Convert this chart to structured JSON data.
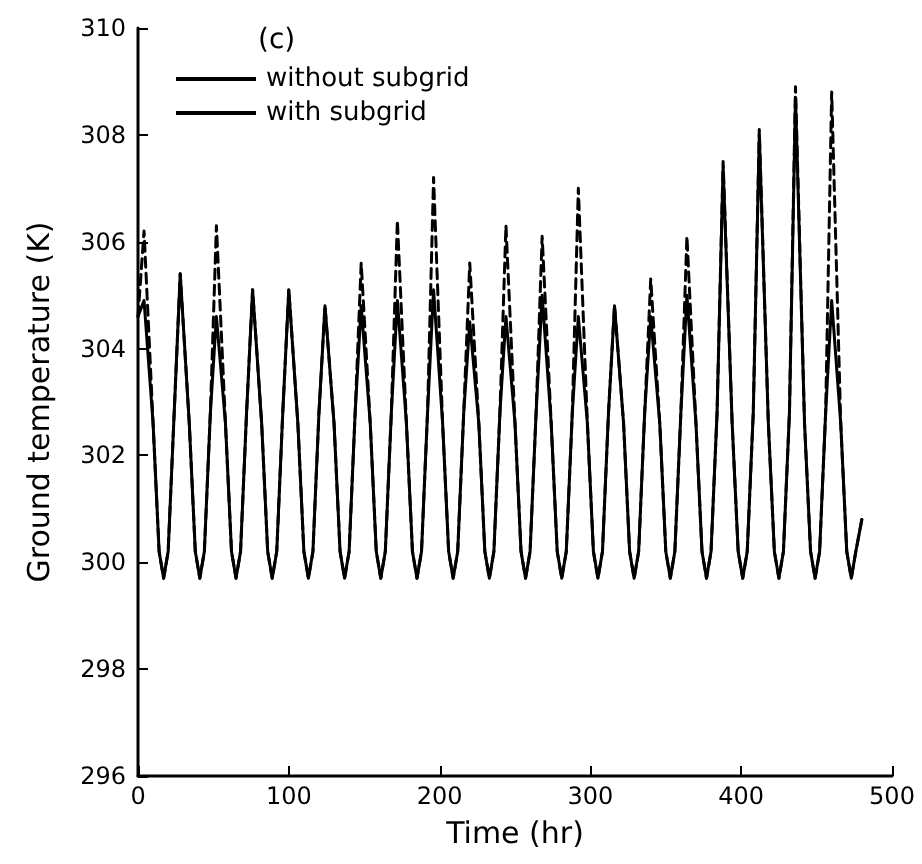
{
  "chart_data": {
    "type": "line",
    "title": "(c)",
    "xlabel": "Time (hr)",
    "ylabel": "Ground temperature (K)",
    "x": [
      0,
      4,
      10,
      14,
      17,
      20,
      24,
      28,
      34,
      38,
      41,
      44,
      48,
      52,
      58,
      62,
      65,
      68,
      72,
      76,
      82,
      86,
      89,
      92,
      96,
      100,
      106,
      110,
      113,
      116,
      120,
      124,
      130,
      134,
      137,
      140,
      144,
      148,
      154,
      158,
      161,
      164,
      168,
      172,
      178,
      182,
      185,
      188,
      192,
      196,
      202,
      206,
      209,
      212,
      216,
      220,
      226,
      230,
      233,
      236,
      240,
      244,
      250,
      254,
      257,
      260,
      264,
      268,
      274,
      278,
      281,
      284,
      288,
      292,
      298,
      302,
      305,
      308,
      312,
      316,
      322,
      326,
      329,
      332,
      336,
      340,
      346,
      350,
      353,
      356,
      360,
      364,
      370,
      374,
      377,
      380,
      384,
      388,
      394,
      398,
      401,
      404,
      408,
      412,
      418,
      422,
      425,
      428,
      432,
      436,
      442,
      446,
      449,
      452,
      456,
      460,
      466,
      470,
      473,
      476,
      480
    ],
    "series": [
      {
        "name": "without subgrid",
        "color": "#000000",
        "line_style": "solid",
        "values": [
          304.6,
          304.9,
          302.6,
          300.2,
          299.7,
          300.2,
          302.8,
          305.4,
          302.6,
          300.2,
          299.7,
          300.2,
          302.8,
          304.6,
          302.6,
          300.2,
          299.7,
          300.2,
          302.8,
          305.1,
          302.6,
          300.2,
          299.7,
          300.2,
          302.8,
          305.1,
          302.6,
          300.2,
          299.7,
          300.2,
          302.8,
          304.8,
          302.6,
          300.2,
          299.7,
          300.2,
          302.8,
          304.8,
          302.6,
          300.2,
          299.7,
          300.2,
          302.8,
          304.9,
          302.6,
          300.2,
          299.7,
          300.2,
          302.8,
          305.1,
          302.6,
          300.2,
          299.7,
          300.2,
          302.8,
          304.5,
          302.6,
          300.2,
          299.7,
          300.2,
          302.8,
          304.6,
          302.6,
          300.2,
          299.7,
          300.2,
          302.8,
          305.0,
          302.6,
          300.2,
          299.7,
          300.2,
          302.8,
          304.6,
          302.6,
          300.2,
          299.7,
          300.2,
          302.8,
          304.8,
          302.6,
          300.2,
          299.7,
          300.2,
          302.8,
          304.6,
          302.6,
          300.2,
          299.7,
          300.2,
          302.8,
          305.0,
          302.6,
          300.2,
          299.7,
          300.2,
          302.8,
          307.4,
          302.6,
          300.2,
          299.7,
          300.2,
          302.8,
          308.0,
          302.6,
          300.2,
          299.7,
          300.2,
          302.8,
          308.7,
          302.6,
          300.2,
          299.7,
          300.2,
          302.8,
          304.9,
          302.6,
          300.2,
          299.7,
          300.2,
          300.8
        ]
      },
      {
        "name": "with subgrid",
        "color": "#000000",
        "line_style": "dashed",
        "values": [
          304.6,
          306.2,
          302.6,
          300.2,
          299.7,
          300.2,
          302.8,
          305.4,
          302.6,
          300.2,
          299.7,
          300.2,
          302.8,
          306.3,
          302.6,
          300.2,
          299.7,
          300.2,
          302.8,
          305.1,
          302.6,
          300.2,
          299.7,
          300.2,
          302.8,
          305.1,
          302.6,
          300.2,
          299.7,
          300.2,
          302.8,
          304.8,
          302.6,
          300.2,
          299.7,
          300.2,
          302.8,
          305.6,
          302.6,
          300.2,
          299.7,
          300.2,
          302.8,
          306.4,
          302.6,
          300.2,
          299.7,
          300.2,
          302.8,
          307.2,
          302.6,
          300.2,
          299.7,
          300.2,
          302.8,
          305.6,
          302.6,
          300.2,
          299.7,
          300.2,
          302.8,
          306.3,
          302.6,
          300.2,
          299.7,
          300.2,
          302.8,
          306.1,
          302.6,
          300.2,
          299.7,
          300.2,
          302.8,
          307.0,
          302.6,
          300.2,
          299.7,
          300.2,
          302.8,
          304.8,
          302.6,
          300.2,
          299.7,
          300.2,
          302.8,
          305.3,
          302.6,
          300.2,
          299.7,
          300.2,
          302.8,
          306.1,
          302.6,
          300.2,
          299.7,
          300.2,
          302.8,
          307.5,
          302.6,
          300.2,
          299.7,
          300.2,
          302.8,
          308.1,
          302.6,
          300.2,
          299.7,
          300.2,
          302.8,
          308.9,
          302.6,
          300.2,
          299.7,
          300.2,
          302.8,
          308.8,
          302.6,
          300.2,
          299.7,
          300.2,
          300.8
        ]
      }
    ],
    "xlim": [
      0,
      500
    ],
    "xticks": [
      0,
      100,
      200,
      300,
      400,
      500
    ],
    "ylim": [
      296,
      310
    ],
    "yticks": [
      296,
      298,
      300,
      302,
      304,
      306,
      308,
      310
    ],
    "grid": false,
    "legend": "top left",
    "marker": "none"
  }
}
